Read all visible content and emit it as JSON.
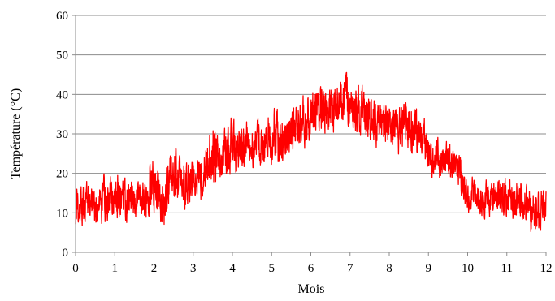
{
  "chart_data": {
    "type": "line",
    "title": "",
    "xlabel": "Mois",
    "ylabel": "Température (°C)",
    "xlim": [
      0,
      12
    ],
    "ylim": [
      0,
      60
    ],
    "x_ticks": [
      "0",
      "1",
      "2",
      "3",
      "4",
      "5",
      "6",
      "7",
      "8",
      "9",
      "10",
      "11",
      "12"
    ],
    "y_ticks": [
      "0",
      "10",
      "20",
      "30",
      "40",
      "50",
      "60"
    ],
    "grid": "horizontal",
    "legend": "none",
    "series": [
      {
        "color": "#ff0000",
        "x": [
          0,
          0.25,
          0.5,
          0.75,
          1,
          1.25,
          1.5,
          1.75,
          2,
          2.25,
          2.5,
          2.75,
          3,
          3.25,
          3.5,
          3.75,
          4,
          4.25,
          4.5,
          4.75,
          5,
          5.25,
          5.5,
          5.75,
          6,
          6.25,
          6.5,
          6.75,
          7,
          7.25,
          7.5,
          7.75,
          8,
          8.25,
          8.5,
          8.75,
          9,
          9.25,
          9.5,
          9.75,
          10,
          10.25,
          10.5,
          10.75,
          11,
          11.25,
          11.5,
          11.75,
          12
        ],
        "y": [
          12,
          13,
          12,
          13,
          14,
          13,
          12,
          14,
          16,
          11,
          23,
          17,
          20,
          18,
          23,
          26,
          26,
          26,
          28,
          27,
          28,
          28,
          30,
          32,
          35,
          37,
          36,
          38,
          38,
          36,
          36,
          33,
          31,
          31,
          32,
          30,
          25,
          24,
          24,
          21,
          14,
          14,
          13,
          14,
          14,
          13,
          11,
          10,
          11
        ],
        "range_min": [
          3,
          5,
          5,
          5,
          5,
          5,
          6,
          6,
          7,
          3,
          10,
          9,
          11,
          11,
          14,
          16,
          17,
          17,
          19,
          18,
          19,
          19,
          21,
          23,
          26,
          28,
          27,
          30,
          28,
          27,
          26,
          24,
          21,
          21,
          22,
          21,
          16,
          17,
          17,
          14,
          9,
          9,
          7,
          7,
          6,
          6,
          3,
          2,
          5
        ],
        "range_max": [
          20,
          21,
          20,
          21,
          23,
          22,
          20,
          22,
          26,
          22,
          33,
          27,
          30,
          28,
          36,
          34,
          38,
          35,
          36,
          37,
          40,
          38,
          40,
          42,
          45,
          47,
          46,
          48,
          48,
          45,
          46,
          41,
          41,
          40,
          41,
          38,
          33,
          31,
          30,
          28,
          21,
          21,
          20,
          21,
          20,
          21,
          21,
          18,
          20
        ]
      }
    ]
  }
}
